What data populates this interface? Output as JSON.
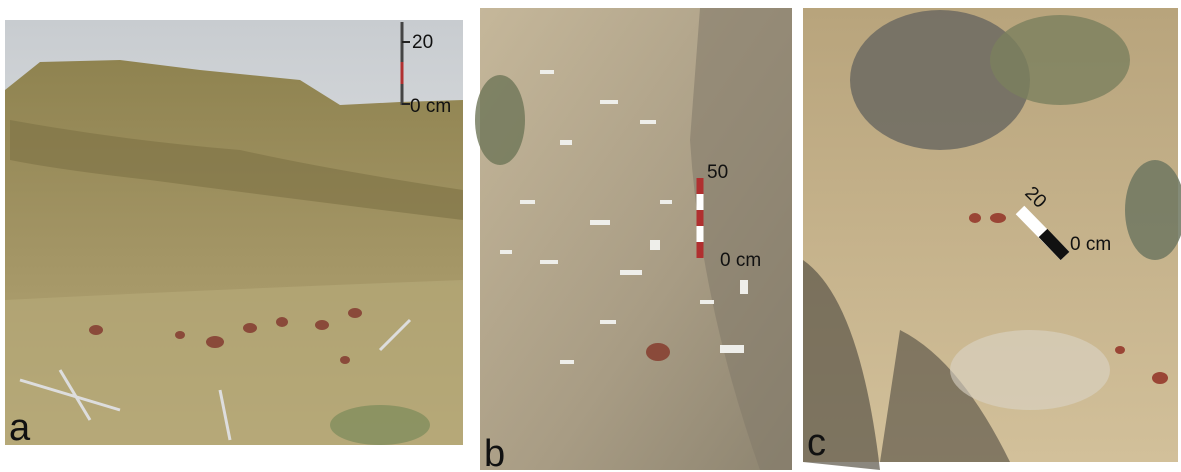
{
  "panels": [
    {
      "label": "a",
      "scale": {
        "top": "20",
        "bottom": "0 cm"
      }
    },
    {
      "label": "b",
      "scale": {
        "top": "50",
        "bottom": "0 cm"
      }
    },
    {
      "label": "c",
      "scale": {
        "top": "20",
        "bottom": "0 cm"
      }
    }
  ]
}
